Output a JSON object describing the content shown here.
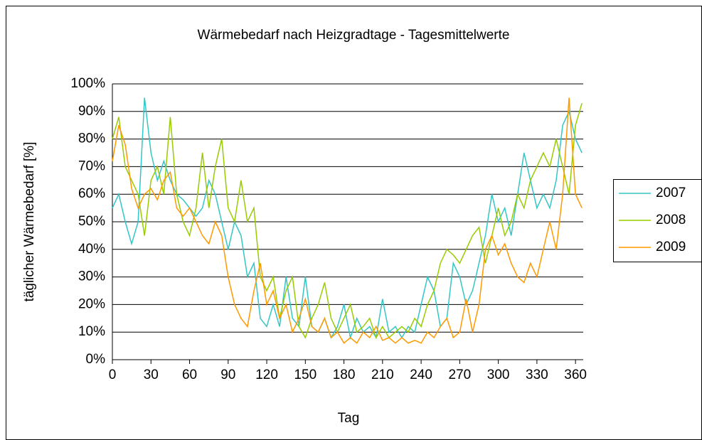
{
  "chart_data": {
    "type": "line",
    "title": "Wärmebedarf nach Heizgradtage - Tagesmittelwerte",
    "x_label": "Tag",
    "y_label": "täglicher Wärmebedarf [%]",
    "x": [
      0,
      5,
      10,
      15,
      20,
      25,
      30,
      35,
      40,
      45,
      50,
      55,
      60,
      65,
      70,
      75,
      80,
      85,
      90,
      95,
      100,
      105,
      110,
      115,
      120,
      125,
      130,
      135,
      140,
      145,
      150,
      155,
      160,
      165,
      170,
      175,
      180,
      185,
      190,
      195,
      200,
      205,
      210,
      215,
      220,
      225,
      230,
      235,
      240,
      245,
      250,
      255,
      260,
      265,
      270,
      275,
      280,
      285,
      290,
      295,
      300,
      305,
      310,
      315,
      320,
      325,
      330,
      335,
      340,
      345,
      350,
      355,
      360,
      365
    ],
    "series": [
      {
        "name": "2007",
        "color": "#33c6c6",
        "values": [
          55,
          60,
          50,
          42,
          50,
          95,
          75,
          65,
          72,
          65,
          60,
          58,
          55,
          52,
          55,
          65,
          60,
          50,
          40,
          50,
          45,
          30,
          35,
          15,
          12,
          20,
          12,
          30,
          15,
          12,
          30,
          12,
          10,
          15,
          8,
          12,
          20,
          8,
          15,
          10,
          12,
          8,
          22,
          10,
          12,
          8,
          12,
          10,
          20,
          30,
          25,
          12,
          15,
          35,
          30,
          20,
          25,
          35,
          45,
          60,
          50,
          55,
          45,
          60,
          75,
          65,
          55,
          60,
          55,
          65,
          85,
          90,
          80,
          75
        ]
      },
      {
        "name": "2008",
        "color": "#99cc00",
        "values": [
          80,
          88,
          70,
          65,
          60,
          45,
          65,
          70,
          60,
          88,
          60,
          50,
          45,
          55,
          75,
          55,
          70,
          80,
          55,
          50,
          65,
          50,
          55,
          30,
          25,
          30,
          15,
          25,
          30,
          12,
          8,
          15,
          20,
          28,
          15,
          10,
          15,
          20,
          10,
          12,
          15,
          8,
          12,
          8,
          10,
          12,
          10,
          15,
          12,
          20,
          25,
          35,
          40,
          38,
          35,
          40,
          45,
          48,
          35,
          45,
          55,
          45,
          50,
          60,
          55,
          65,
          70,
          75,
          70,
          80,
          70,
          60,
          85,
          93
        ]
      },
      {
        "name": "2009",
        "color": "#ff9900",
        "values": [
          72,
          85,
          78,
          62,
          55,
          60,
          62,
          58,
          65,
          68,
          55,
          52,
          55,
          50,
          45,
          42,
          50,
          45,
          30,
          20,
          15,
          12,
          25,
          35,
          20,
          25,
          15,
          20,
          10,
          15,
          22,
          12,
          10,
          15,
          8,
          10,
          6,
          8,
          6,
          10,
          8,
          12,
          7,
          8,
          6,
          8,
          6,
          7,
          6,
          10,
          8,
          12,
          15,
          8,
          10,
          22,
          10,
          20,
          40,
          45,
          38,
          42,
          35,
          30,
          28,
          35,
          30,
          40,
          50,
          40,
          60,
          95,
          60,
          55
        ]
      }
    ],
    "xlim": [
      0,
      366
    ],
    "xticks": [
      0,
      30,
      60,
      90,
      120,
      150,
      180,
      210,
      240,
      270,
      300,
      330,
      360
    ],
    "ylim": [
      0,
      100
    ],
    "yticks": [
      {
        "value": 0,
        "label": "0%"
      },
      {
        "value": 10,
        "label": "10%"
      },
      {
        "value": 20,
        "label": "20%"
      },
      {
        "value": 30,
        "label": "30%"
      },
      {
        "value": 40,
        "label": "40%"
      },
      {
        "value": 50,
        "label": "50%"
      },
      {
        "value": 60,
        "label": "60%"
      },
      {
        "value": 70,
        "label": "70%"
      },
      {
        "value": 80,
        "label": "80%"
      },
      {
        "value": 90,
        "label": "90%"
      },
      {
        "value": 100,
        "label": "100%"
      }
    ],
    "grid": true,
    "legend": "right"
  }
}
